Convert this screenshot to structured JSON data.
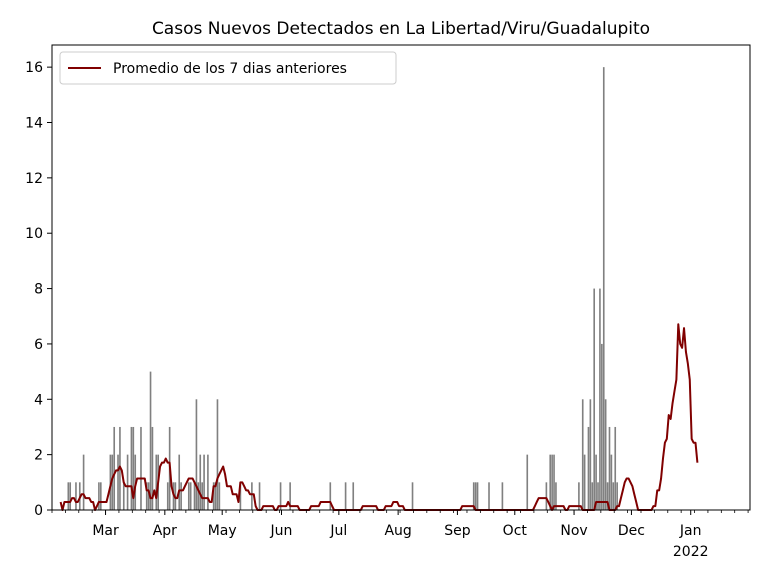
{
  "chart_data": {
    "type": "bar",
    "title": "Casos Nuevos Detectados en La Libertad/Viru/Guadalupito",
    "xlabel": "",
    "ylabel": "",
    "x_unit": "day",
    "x_range": [
      "2021-02-01",
      "2022-01-31"
    ],
    "ylim": [
      0,
      16.8
    ],
    "y_ticks": [
      0,
      2,
      4,
      6,
      8,
      10,
      12,
      14,
      16
    ],
    "x_ticks": [
      {
        "date": "2021-03-01",
        "label": "Mar"
      },
      {
        "date": "2021-04-01",
        "label": "Apr"
      },
      {
        "date": "2021-05-01",
        "label": "May"
      },
      {
        "date": "2021-06-01",
        "label": "Jun"
      },
      {
        "date": "2021-07-01",
        "label": "Jul"
      },
      {
        "date": "2021-08-01",
        "label": "Aug"
      },
      {
        "date": "2021-09-01",
        "label": "Sep"
      },
      {
        "date": "2021-10-01",
        "label": "Oct"
      },
      {
        "date": "2021-11-01",
        "label": "Nov"
      },
      {
        "date": "2021-12-01",
        "label": "Dec"
      },
      {
        "date": "2022-01-01",
        "label": "Jan",
        "sublabel": "2022"
      }
    ],
    "grid": false,
    "legend_position": "top-left",
    "bar_color": "#808080",
    "line_color": "#800000",
    "series": [
      {
        "kind": "bar",
        "start_date": "2021-02-07",
        "values": [
          0,
          0,
          1,
          1,
          0,
          0,
          1,
          0,
          1,
          0,
          2,
          0,
          0,
          0,
          0,
          0,
          0,
          0,
          1,
          1,
          0,
          0,
          0,
          0,
          2,
          2,
          3,
          0,
          2,
          3,
          0,
          1,
          0,
          2,
          0,
          3,
          3,
          2,
          0,
          0,
          3,
          0,
          0,
          1,
          1,
          5,
          3,
          0,
          2,
          2,
          0,
          0,
          0,
          0,
          1,
          3,
          0,
          1,
          1,
          0,
          2,
          1,
          0,
          0,
          0,
          1,
          1,
          0,
          1,
          4,
          1,
          2,
          1,
          2,
          0,
          2,
          0,
          0,
          1,
          1,
          4,
          1,
          0,
          0,
          0,
          0,
          0,
          0,
          0,
          0,
          0,
          0,
          1,
          0,
          0,
          0,
          0,
          0,
          1,
          0,
          0,
          0,
          1,
          0,
          0,
          0,
          0,
          0,
          0,
          0,
          0,
          0,
          0,
          1,
          0,
          0,
          0,
          0,
          1,
          0,
          0,
          0,
          0,
          0,
          0,
          0,
          0,
          0,
          0,
          0,
          0,
          0,
          0,
          0,
          0,
          0,
          0,
          0,
          0,
          1,
          0,
          0,
          0,
          0,
          0,
          0,
          0,
          1,
          0,
          0,
          0,
          1,
          0,
          0,
          0,
          0,
          0,
          0,
          0,
          0,
          0,
          0,
          0,
          0,
          0,
          0,
          0,
          0,
          0,
          0,
          0,
          0,
          0,
          0,
          0,
          0,
          0,
          0,
          0,
          0,
          0,
          0,
          1,
          0,
          0,
          0,
          0,
          0,
          0,
          0,
          0,
          0,
          0,
          0,
          0,
          0,
          0,
          0,
          0,
          0,
          0,
          0,
          0,
          0,
          0,
          0,
          0,
          0,
          0,
          0,
          0,
          0,
          0,
          0,
          1,
          1,
          1,
          0,
          0,
          0,
          0,
          0,
          1,
          0,
          0,
          0,
          0,
          0,
          0,
          1,
          0,
          0,
          0,
          0,
          0,
          0,
          0,
          0,
          0,
          0,
          0,
          0,
          2,
          0,
          0,
          0,
          0,
          0,
          0,
          0,
          0,
          0,
          1,
          0,
          2,
          2,
          2,
          1,
          0,
          0,
          0,
          0,
          0,
          0,
          0,
          0,
          0,
          0,
          0,
          1,
          0,
          4,
          2,
          0,
          3,
          4,
          1,
          8,
          2,
          1,
          8,
          6,
          16,
          4,
          1,
          3,
          2,
          1,
          3,
          1,
          0,
          0
        ]
      },
      {
        "kind": "line",
        "name": "Promedio de los 7 dias anteriores",
        "start_date": "2021-02-05",
        "values": [
          0.29,
          0.0,
          0.29,
          0.29,
          0.29,
          0.29,
          0.43,
          0.43,
          0.29,
          0.29,
          0.43,
          0.57,
          0.57,
          0.43,
          0.43,
          0.43,
          0.29,
          0.29,
          0.0,
          0.14,
          0.29,
          0.29,
          0.29,
          0.29,
          0.29,
          0.57,
          0.86,
          1.14,
          1.29,
          1.43,
          1.43,
          1.57,
          1.43,
          1.0,
          0.86,
          0.86,
          0.86,
          0.86,
          0.43,
          0.86,
          1.14,
          1.14,
          1.14,
          1.14,
          1.14,
          0.71,
          0.71,
          0.43,
          0.43,
          0.71,
          0.43,
          1.0,
          1.57,
          1.71,
          1.71,
          1.86,
          1.71,
          1.71,
          0.86,
          0.57,
          0.43,
          0.43,
          0.71,
          0.71,
          0.71,
          0.86,
          1.0,
          1.14,
          1.14,
          1.14,
          1.0,
          0.86,
          0.71,
          0.57,
          0.43,
          0.43,
          0.43,
          0.43,
          0.29,
          0.29,
          0.86,
          0.86,
          1.14,
          1.29,
          1.43,
          1.57,
          1.29,
          0.86,
          0.86,
          0.86,
          0.57,
          0.57,
          0.57,
          0.29,
          1.0,
          1.0,
          0.86,
          0.71,
          0.71,
          0.57,
          0.57,
          0.57,
          0.14,
          0.0,
          0.0,
          0.0,
          0.14,
          0.14,
          0.14,
          0.14,
          0.14,
          0.14,
          0.0,
          0.0,
          0.14,
          0.14,
          0.14,
          0.14,
          0.14,
          0.29,
          0.14,
          0.14,
          0.14,
          0.14,
          0.14,
          0.0,
          0.0,
          0.0,
          0.0,
          0.0,
          0.0,
          0.14,
          0.14,
          0.14,
          0.14,
          0.14,
          0.29,
          0.29,
          0.29,
          0.29,
          0.29,
          0.29,
          0.14,
          0.0,
          0.0,
          0.0,
          0.0,
          0.0,
          0.0,
          0.0,
          0.0,
          0.0,
          0.0,
          0.0,
          0.0,
          0.0,
          0.0,
          0.0,
          0.14,
          0.14,
          0.14,
          0.14,
          0.14,
          0.14,
          0.14,
          0.14,
          0.0,
          0.0,
          0.0,
          0.0,
          0.14,
          0.14,
          0.14,
          0.14,
          0.29,
          0.29,
          0.29,
          0.14,
          0.14,
          0.14,
          0.0,
          0.0,
          0.0,
          0.0,
          0.0,
          0.0,
          0.0,
          0.0,
          0.0,
          0.0,
          0.0,
          0.0,
          0.0,
          0.0,
          0.0,
          0.0,
          0.0,
          0.0,
          0.0,
          0.0,
          0.0,
          0.0,
          0.0,
          0.0,
          0.0,
          0.0,
          0.0,
          0.0,
          0.0,
          0.0,
          0.14,
          0.14,
          0.14,
          0.14,
          0.14,
          0.14,
          0.14,
          0.0,
          0.0,
          0.0,
          0.0,
          0.0,
          0.0,
          0.0,
          0.0,
          0.0,
          0.0,
          0.0,
          0.0,
          0.0,
          0.0,
          0.0,
          0.0,
          0.0,
          0.0,
          0.0,
          0.0,
          0.0,
          0.0,
          0.0,
          0.0,
          0.0,
          0.0,
          0.0,
          0.0,
          0.0,
          0.0,
          0.0,
          0.14,
          0.29,
          0.43,
          0.43,
          0.43,
          0.43,
          0.43,
          0.29,
          0.14,
          0.0,
          0.14,
          0.14,
          0.14,
          0.14,
          0.14,
          0.14,
          0.0,
          0.0,
          0.14,
          0.14,
          0.14,
          0.14,
          0.14,
          0.14,
          0.14,
          0.0,
          0.0,
          0.0,
          0.0,
          0.0,
          0.0,
          0.0,
          0.29,
          0.29,
          0.29,
          0.29,
          0.29,
          0.29,
          0.29,
          0.0,
          0.0,
          0.0,
          0.0,
          0.14,
          0.14,
          0.43,
          0.71,
          1.0,
          1.14,
          1.14,
          1.0,
          0.86,
          0.57,
          0.29,
          0.0,
          0.0,
          0.0,
          0.0,
          0.0,
          0.0,
          0.0,
          0.0,
          0.14,
          0.14,
          0.71,
          0.71,
          1.14,
          1.86,
          2.43,
          2.57,
          3.43,
          3.29,
          3.86,
          4.29,
          4.71,
          6.71,
          6.0,
          5.86,
          6.57,
          5.71,
          5.29,
          4.71,
          2.57,
          2.43,
          2.43,
          1.71
        ]
      }
    ]
  }
}
